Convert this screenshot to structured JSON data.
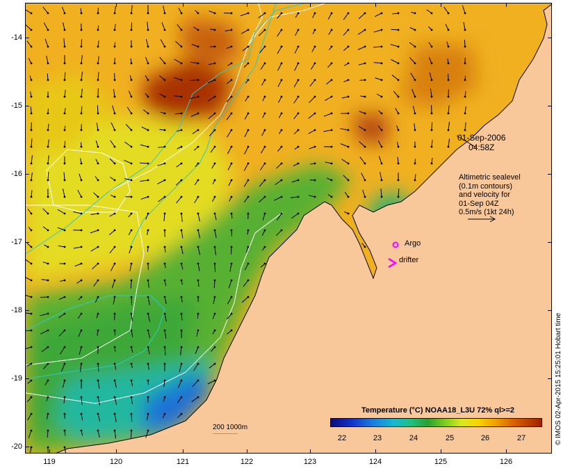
{
  "map": {
    "lat_labels": [
      "-14",
      "-15",
      "-16",
      "-17",
      "-18",
      "-19",
      "-20"
    ],
    "lon_labels": [
      "119",
      "120",
      "121",
      "122",
      "123",
      "124",
      "125",
      "126"
    ],
    "colors": {
      "land": "#f9c89a",
      "ocean_dark": "#9c2a00",
      "ocean_mid": "#f0a010",
      "ocean_yellow": "#e8e020",
      "ocean_green": "#44b030",
      "ocean_cyan": "#20b8b0",
      "ocean_blue": "#1860d8",
      "contour_white": "#ffffff",
      "contour_cyan": "#30c8c0",
      "marker_magenta": "#ff00ff"
    }
  },
  "annotations": {
    "date_line1": "01-Sep-2006",
    "date_line2": "04:58Z",
    "info_line1": "Altimetric sealevel",
    "info_line2": "(0.1m contours)",
    "info_line3": "and velocity for",
    "info_line4": "01-Sep 04Z",
    "info_line5": "0.5m/s (1kt 24h)",
    "argo_label": "Argo",
    "drifter_label": "drifter",
    "scale_label": "200  1000m"
  },
  "legend": {
    "title": "Temperature (°C) NOAA18_L3U 72% ql>=2",
    "ticks": [
      "22",
      "23",
      "24",
      "25",
      "26",
      "27"
    ]
  },
  "credit": "© IMOS 02-Apr-2015 15:25:01 Hobart time"
}
